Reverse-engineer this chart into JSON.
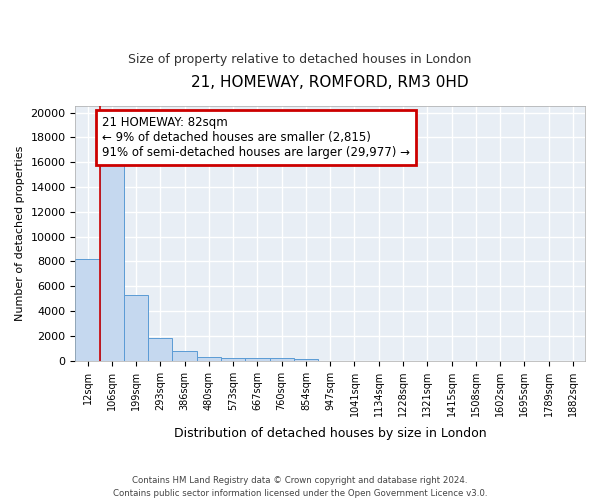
{
  "title1": "21, HOMEWAY, ROMFORD, RM3 0HD",
  "title2": "Size of property relative to detached houses in London",
  "xlabel": "Distribution of detached houses by size in London",
  "ylabel": "Number of detached properties",
  "categories": [
    "12sqm",
    "106sqm",
    "199sqm",
    "293sqm",
    "386sqm",
    "480sqm",
    "573sqm",
    "667sqm",
    "760sqm",
    "854sqm",
    "947sqm",
    "1041sqm",
    "1134sqm",
    "1228sqm",
    "1321sqm",
    "1415sqm",
    "1508sqm",
    "1602sqm",
    "1695sqm",
    "1789sqm",
    "1882sqm"
  ],
  "values": [
    8200,
    16600,
    5300,
    1850,
    750,
    310,
    230,
    210,
    200,
    170,
    0,
    0,
    0,
    0,
    0,
    0,
    0,
    0,
    0,
    0,
    0
  ],
  "bar_color": "#c5d8ef",
  "bar_edge_color": "#5b9bd5",
  "ylim": [
    0,
    20500
  ],
  "yticks": [
    0,
    2000,
    4000,
    6000,
    8000,
    10000,
    12000,
    14000,
    16000,
    18000,
    20000
  ],
  "annotation_text": "21 HOMEWAY: 82sqm\n← 9% of detached houses are smaller (2,815)\n91% of semi-detached houses are larger (29,977) →",
  "annotation_box_color": "#ffffff",
  "annotation_box_edge_color": "#cc0000",
  "footnote": "Contains HM Land Registry data © Crown copyright and database right 2024.\nContains public sector information licensed under the Open Government Licence v3.0.",
  "bg_color": "#ffffff",
  "plot_bg_color": "#e8eef5",
  "grid_color": "#ffffff",
  "title1_fontsize": 11,
  "title2_fontsize": 9
}
